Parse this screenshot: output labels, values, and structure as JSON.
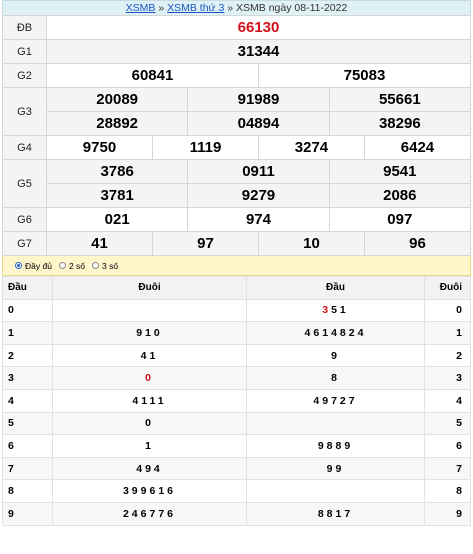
{
  "breadcrumb": {
    "link1": "XSMB",
    "sep1": "»",
    "link2": "XSMB thứ 3",
    "sep2": "»",
    "current": "XSMB ngày 08-11-2022"
  },
  "results": {
    "db": {
      "label": "ĐB",
      "values": [
        "66130"
      ]
    },
    "g1": {
      "label": "G1",
      "values": [
        "31344"
      ]
    },
    "g2": {
      "label": "G2",
      "values": [
        "60841",
        "75083"
      ]
    },
    "g3": {
      "label": "G3",
      "values": [
        "20089",
        "91989",
        "55661",
        "28892",
        "04894",
        "38296"
      ]
    },
    "g4": {
      "label": "G4",
      "values": [
        "9750",
        "1119",
        "3274",
        "6424"
      ]
    },
    "g5": {
      "label": "G5",
      "values": [
        "3786",
        "0911",
        "9541",
        "3781",
        "9279",
        "2086"
      ]
    },
    "g6": {
      "label": "G6",
      "values": [
        "021",
        "974",
        "097"
      ]
    },
    "g7": {
      "label": "G7",
      "values": [
        "41",
        "97",
        "10",
        "96"
      ]
    }
  },
  "options": [
    {
      "label": "Đầy đủ",
      "selected": true
    },
    {
      "label": "2 số",
      "selected": false
    },
    {
      "label": "3 số",
      "selected": false
    }
  ],
  "lotoHeader": {
    "dau": "Đầu",
    "duoi": "Đuôi",
    "dau2": "Đầu",
    "duoi2": "Đuôi"
  },
  "lotoRows": [
    {
      "head": "0",
      "tails": "",
      "heads": "351",
      "tail": "0"
    },
    {
      "head": "1",
      "tails": "910",
      "heads": "4614824",
      "tail": "1"
    },
    {
      "head": "2",
      "tails": "41",
      "heads": "9",
      "tail": "2"
    },
    {
      "head": "3",
      "tails": "0",
      "heads": "8",
      "tail": "3"
    },
    {
      "head": "4",
      "tails": "4111",
      "heads": "49727",
      "tail": "4"
    },
    {
      "head": "5",
      "tails": "0",
      "heads": "",
      "tail": "5"
    },
    {
      "head": "6",
      "tails": "1",
      "heads": "9889",
      "tail": "6"
    },
    {
      "head": "7",
      "tails": "494",
      "heads": "99",
      "tail": "7"
    },
    {
      "head": "8",
      "tails": "399616",
      "heads": "",
      "tail": "8"
    },
    {
      "head": "9",
      "tails": "246776",
      "heads": "8817",
      "tail": "9"
    }
  ],
  "colors": {
    "special": "#d0111a",
    "link": "#1a56c6"
  }
}
